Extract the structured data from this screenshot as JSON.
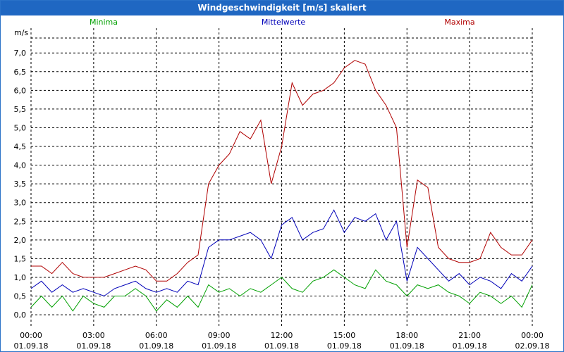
{
  "chart_data": {
    "type": "line",
    "title": "Windgeschwindigkeit [m/s] skaliert",
    "ylabel": "m/s",
    "ylim": [
      -0.3,
      7.7
    ],
    "xlim": [
      0,
      24
    ],
    "grid": true,
    "legend_position": "top",
    "y_ticks": [
      {
        "v": 0.0,
        "label": "0,0"
      },
      {
        "v": 0.5,
        "label": "0,5"
      },
      {
        "v": 1.0,
        "label": "1,0"
      },
      {
        "v": 1.5,
        "label": "1,5"
      },
      {
        "v": 2.0,
        "label": "2,0"
      },
      {
        "v": 2.5,
        "label": "2,5"
      },
      {
        "v": 3.0,
        "label": "3,0"
      },
      {
        "v": 3.5,
        "label": "3,5"
      },
      {
        "v": 4.0,
        "label": "4,0"
      },
      {
        "v": 4.5,
        "label": "4,5"
      },
      {
        "v": 5.0,
        "label": "5,0"
      },
      {
        "v": 5.5,
        "label": "5,5"
      },
      {
        "v": 6.0,
        "label": "6,0"
      },
      {
        "v": 6.5,
        "label": "6,5"
      },
      {
        "v": 7.0,
        "label": "7,0"
      }
    ],
    "x_ticks": [
      {
        "v": 0,
        "time": "00:00",
        "date": "01.09.18"
      },
      {
        "v": 3,
        "time": "03:00",
        "date": "01.09.18"
      },
      {
        "v": 6,
        "time": "06:00",
        "date": "01.09.18"
      },
      {
        "v": 9,
        "time": "09:00",
        "date": "01.09.18"
      },
      {
        "v": 12,
        "time": "12:00",
        "date": "01.09.18"
      },
      {
        "v": 15,
        "time": "15:00",
        "date": "01.09.18"
      },
      {
        "v": 18,
        "time": "18:00",
        "date": "01.09.18"
      },
      {
        "v": 21,
        "time": "21:00",
        "date": "01.09.18"
      },
      {
        "v": 24,
        "time": "00:00",
        "date": "02.09.18"
      }
    ],
    "series": [
      {
        "name": "Minima",
        "color": "#00a000",
        "x": [
          0,
          0.5,
          1,
          1.5,
          2,
          2.5,
          3,
          3.5,
          4,
          4.5,
          5,
          5.5,
          6,
          6.5,
          7,
          7.5,
          8,
          8.5,
          9,
          9.5,
          10,
          10.5,
          11,
          11.5,
          12,
          12.5,
          13,
          13.5,
          14,
          14.5,
          15,
          15.5,
          16,
          16.5,
          17,
          17.5,
          18,
          18.5,
          19,
          19.5,
          20,
          20.5,
          21,
          21.5,
          22,
          22.5,
          23,
          23.5,
          24
        ],
        "values": [
          0.2,
          0.5,
          0.2,
          0.5,
          0.1,
          0.5,
          0.3,
          0.2,
          0.5,
          0.5,
          0.7,
          0.5,
          0.1,
          0.4,
          0.2,
          0.5,
          0.2,
          0.8,
          0.6,
          0.7,
          0.5,
          0.7,
          0.6,
          0.8,
          1.0,
          0.7,
          0.6,
          0.9,
          1.0,
          1.2,
          1.0,
          0.8,
          0.7,
          1.2,
          0.9,
          0.8,
          0.5,
          0.8,
          0.7,
          0.8,
          0.6,
          0.5,
          0.3,
          0.6,
          0.5,
          0.3,
          0.5,
          0.2,
          0.8
        ]
      },
      {
        "name": "Mittelwerte",
        "color": "#0000b8",
        "x": [
          0,
          0.5,
          1,
          1.5,
          2,
          2.5,
          3,
          3.5,
          4,
          4.5,
          5,
          5.5,
          6,
          6.5,
          7,
          7.5,
          8,
          8.5,
          9,
          9.5,
          10,
          10.5,
          11,
          11.5,
          12,
          12.5,
          13,
          13.5,
          14,
          14.5,
          15,
          15.5,
          16,
          16.5,
          17,
          17.5,
          18,
          18.5,
          19,
          19.5,
          20,
          20.5,
          21,
          21.5,
          22,
          22.5,
          23,
          23.5,
          24
        ],
        "values": [
          0.7,
          0.9,
          0.6,
          0.8,
          0.6,
          0.7,
          0.6,
          0.5,
          0.7,
          0.8,
          0.9,
          0.7,
          0.6,
          0.7,
          0.6,
          0.9,
          0.8,
          1.8,
          2.0,
          2.0,
          2.1,
          2.2,
          2.0,
          1.5,
          2.4,
          2.6,
          2.0,
          2.2,
          2.3,
          2.8,
          2.2,
          2.6,
          2.5,
          2.7,
          2.0,
          2.5,
          0.9,
          1.8,
          1.5,
          1.2,
          0.9,
          1.1,
          0.8,
          1.0,
          0.9,
          0.7,
          1.1,
          0.9,
          1.3
        ]
      },
      {
        "name": "Maxima",
        "color": "#b00000",
        "x": [
          0,
          0.5,
          1,
          1.5,
          2,
          2.5,
          3,
          3.5,
          4,
          4.5,
          5,
          5.5,
          6,
          6.5,
          7,
          7.5,
          8,
          8.5,
          9,
          9.5,
          10,
          10.5,
          11,
          11.5,
          12,
          12.5,
          13,
          13.5,
          14,
          14.5,
          15,
          15.5,
          16,
          16.5,
          17,
          17.5,
          18,
          18.5,
          19,
          19.5,
          20,
          20.5,
          21,
          21.5,
          22,
          22.5,
          23,
          23.5,
          24
        ],
        "values": [
          1.3,
          1.3,
          1.1,
          1.4,
          1.1,
          1.0,
          1.0,
          1.0,
          1.1,
          1.2,
          1.3,
          1.2,
          0.9,
          0.9,
          1.1,
          1.4,
          1.6,
          3.5,
          4.0,
          4.3,
          4.9,
          4.7,
          5.2,
          3.5,
          4.5,
          6.2,
          5.6,
          5.9,
          6.0,
          6.2,
          6.6,
          6.8,
          6.7,
          6.0,
          5.6,
          5.0,
          1.8,
          3.6,
          3.4,
          1.8,
          1.5,
          1.4,
          1.4,
          1.5,
          2.2,
          1.8,
          1.6,
          1.6,
          2.0
        ]
      }
    ]
  }
}
